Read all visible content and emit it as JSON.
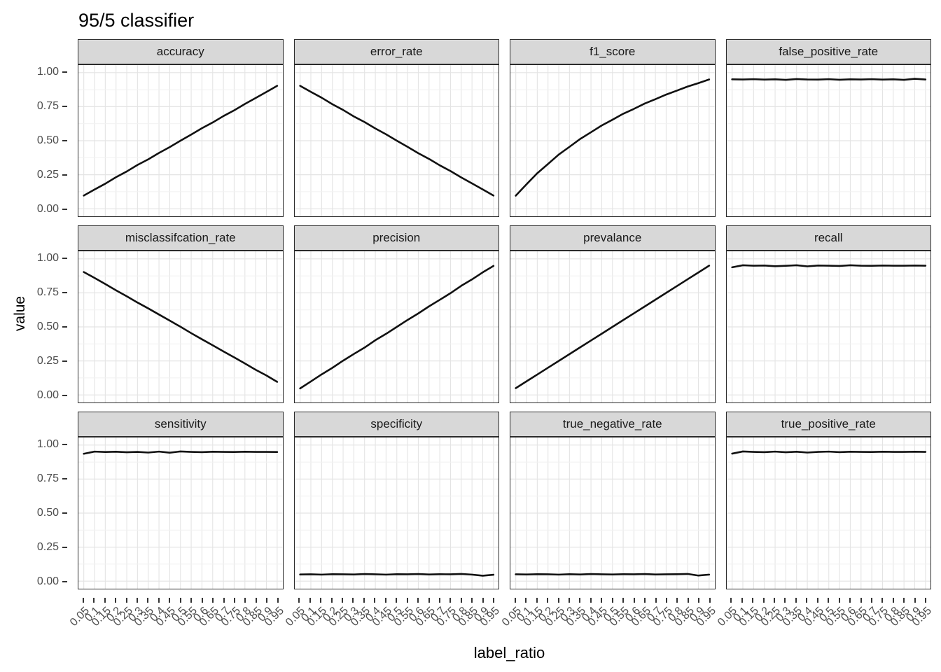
{
  "title": "95/5 classifier",
  "axes": {
    "x_title": "label_ratio",
    "y_title": "value",
    "y_tick_labels": [
      "1.00",
      "0.75",
      "0.50",
      "0.25",
      "0.00"
    ],
    "x_tick_labels": [
      "0.05",
      "0.1",
      "0.15",
      "0.2",
      "0.25",
      "0.3",
      "0.35",
      "0.4",
      "0.45",
      "0.5",
      "0.55",
      "0.6",
      "0.65",
      "0.7",
      "0.75",
      "0.8",
      "0.85",
      "0.9",
      "0.95"
    ]
  },
  "colors": {
    "line": "#111111",
    "strip_fill": "#d8d8d8",
    "panel_border": "#2b2b2b",
    "grid_major": "#e4e4e4",
    "grid_minor": "#f1f1f1",
    "tick_text": "#4d4d4d"
  },
  "chart_data": {
    "type": "line",
    "title": "95/5 classifier",
    "xlabel": "label_ratio",
    "ylabel": "value",
    "ylim": [
      0,
      1
    ],
    "grid": "on",
    "legend": "none",
    "layout": "facet_wrap 3 rows x 4 cols",
    "x": [
      0.05,
      0.1,
      0.15,
      0.2,
      0.25,
      0.3,
      0.35,
      0.4,
      0.45,
      0.5,
      0.55,
      0.6,
      0.65,
      0.7,
      0.75,
      0.8,
      0.85,
      0.9,
      0.95
    ],
    "facets": [
      {
        "name": "accuracy",
        "values": [
          0.097,
          0.141,
          0.184,
          0.232,
          0.274,
          0.322,
          0.363,
          0.41,
          0.453,
          0.5,
          0.545,
          0.592,
          0.634,
          0.681,
          0.723,
          0.77,
          0.814,
          0.858,
          0.903
        ]
      },
      {
        "name": "error_rate",
        "values": [
          0.903,
          0.859,
          0.816,
          0.768,
          0.726,
          0.678,
          0.637,
          0.59,
          0.547,
          0.5,
          0.455,
          0.408,
          0.366,
          0.319,
          0.277,
          0.23,
          0.186,
          0.142,
          0.097
        ]
      },
      {
        "name": "f1_score",
        "values": [
          0.096,
          0.18,
          0.261,
          0.329,
          0.398,
          0.455,
          0.513,
          0.562,
          0.612,
          0.654,
          0.698,
          0.734,
          0.773,
          0.805,
          0.839,
          0.868,
          0.898,
          0.923,
          0.95
        ]
      },
      {
        "name": "false_positive_rate",
        "values": [
          0.951,
          0.95,
          0.952,
          0.949,
          0.951,
          0.947,
          0.953,
          0.95,
          0.949,
          0.952,
          0.948,
          0.951,
          0.95,
          0.952,
          0.949,
          0.951,
          0.947,
          0.955,
          0.95
        ]
      },
      {
        "name": "misclassifcation_rate",
        "values": [
          0.903,
          0.86,
          0.815,
          0.769,
          0.725,
          0.679,
          0.636,
          0.591,
          0.546,
          0.501,
          0.454,
          0.409,
          0.365,
          0.32,
          0.276,
          0.231,
          0.185,
          0.143,
          0.096
        ]
      },
      {
        "name": "precision",
        "values": [
          0.048,
          0.099,
          0.151,
          0.199,
          0.252,
          0.301,
          0.348,
          0.402,
          0.449,
          0.5,
          0.551,
          0.599,
          0.651,
          0.699,
          0.748,
          0.802,
          0.849,
          0.901,
          0.948
        ]
      },
      {
        "name": "prevalance",
        "values": [
          0.05,
          0.1,
          0.15,
          0.2,
          0.25,
          0.3,
          0.35,
          0.4,
          0.45,
          0.5,
          0.55,
          0.6,
          0.65,
          0.7,
          0.75,
          0.8,
          0.85,
          0.9,
          0.95
        ]
      },
      {
        "name": "recall",
        "values": [
          0.938,
          0.953,
          0.95,
          0.951,
          0.946,
          0.949,
          0.953,
          0.945,
          0.951,
          0.95,
          0.948,
          0.953,
          0.95,
          0.949,
          0.951,
          0.95,
          0.95,
          0.951,
          0.95
        ]
      },
      {
        "name": "sensitivity",
        "values": [
          0.936,
          0.952,
          0.949,
          0.951,
          0.947,
          0.95,
          0.945,
          0.952,
          0.944,
          0.953,
          0.95,
          0.948,
          0.951,
          0.95,
          0.949,
          0.951,
          0.95,
          0.95,
          0.949
        ]
      },
      {
        "name": "specificity",
        "values": [
          0.049,
          0.05,
          0.048,
          0.051,
          0.05,
          0.049,
          0.052,
          0.05,
          0.048,
          0.051,
          0.05,
          0.052,
          0.049,
          0.051,
          0.05,
          0.053,
          0.048,
          0.04,
          0.047
        ]
      },
      {
        "name": "true_negative_rate",
        "values": [
          0.05,
          0.049,
          0.051,
          0.05,
          0.048,
          0.051,
          0.049,
          0.052,
          0.05,
          0.049,
          0.051,
          0.05,
          0.052,
          0.049,
          0.05,
          0.051,
          0.053,
          0.041,
          0.048
        ]
      },
      {
        "name": "true_positive_rate",
        "values": [
          0.937,
          0.953,
          0.95,
          0.948,
          0.952,
          0.947,
          0.951,
          0.945,
          0.95,
          0.952,
          0.948,
          0.951,
          0.95,
          0.949,
          0.951,
          0.95,
          0.95,
          0.951,
          0.95
        ]
      }
    ]
  }
}
